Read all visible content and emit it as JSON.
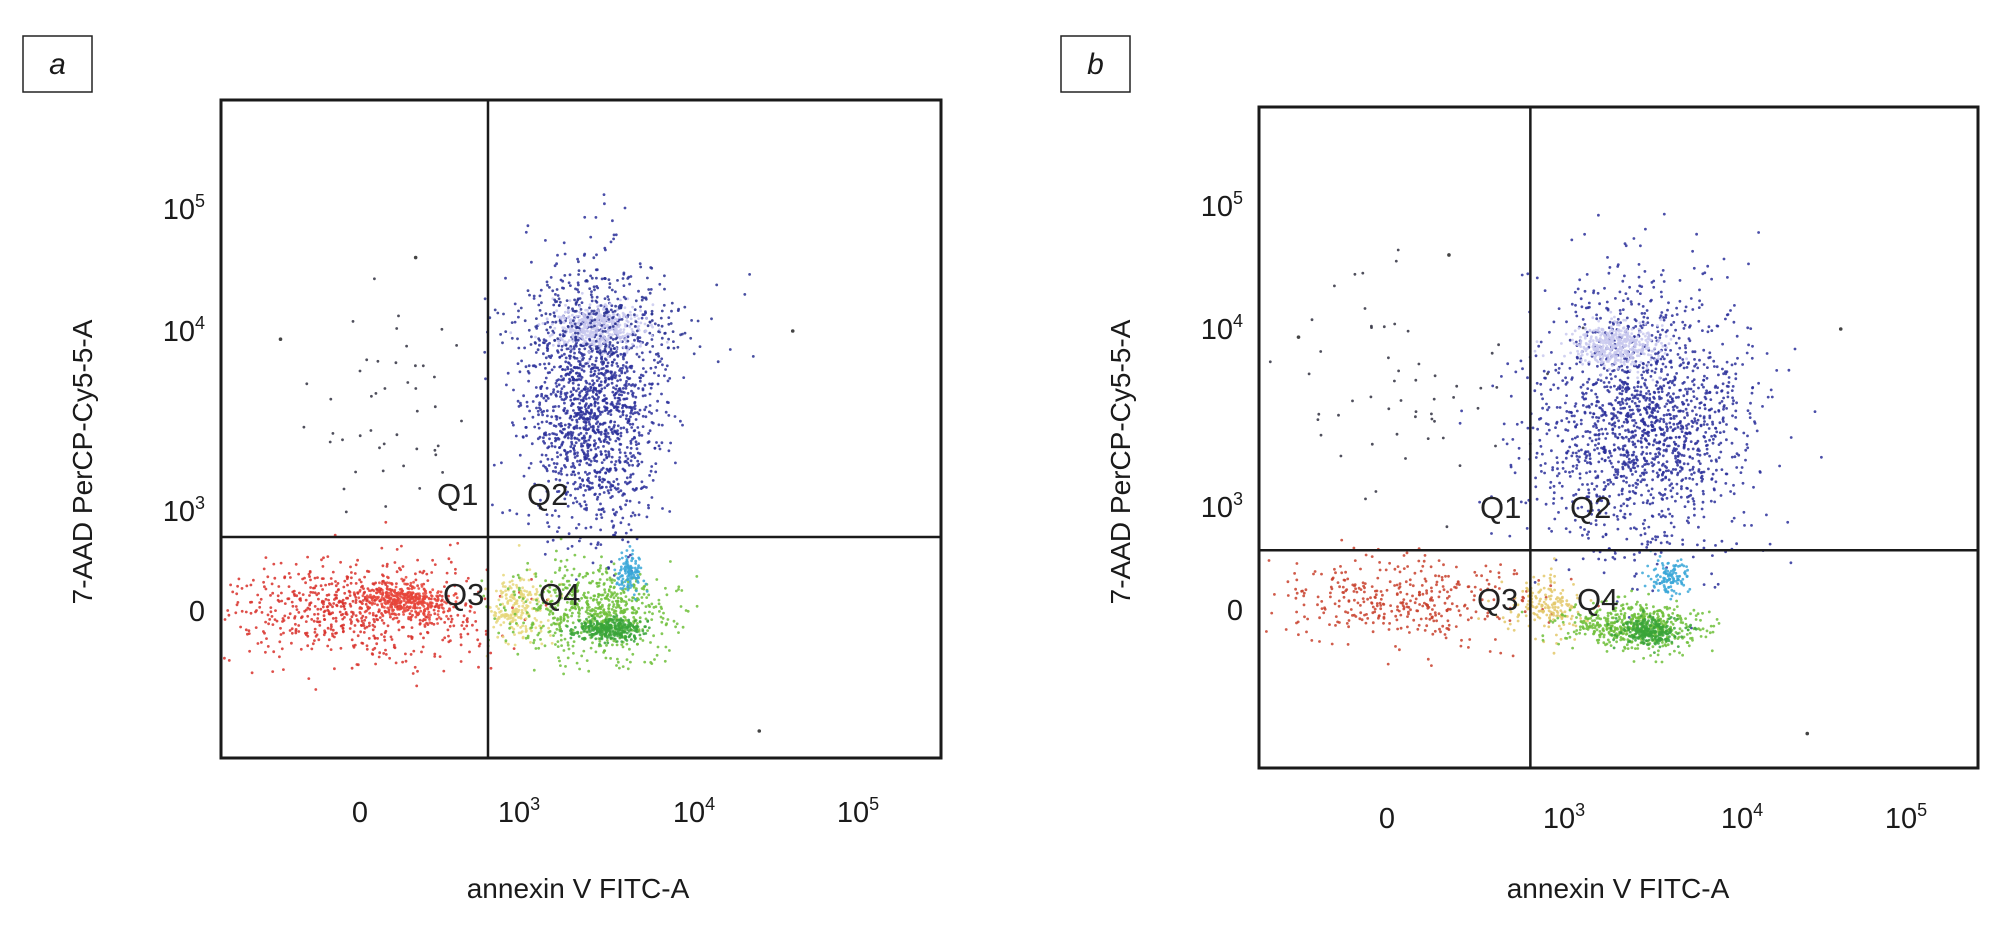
{
  "chart_data": [
    {
      "type": "scatter",
      "panel_label": "a",
      "xlabel": "annexin V FITC-A",
      "ylabel": "7-AAD PerCP-Cy5-5-A",
      "x_ticks": [
        {
          "base": "0",
          "exp": ""
        },
        {
          "base": "10",
          "exp": "3"
        },
        {
          "base": "10",
          "exp": "4"
        },
        {
          "base": "10",
          "exp": "5"
        }
      ],
      "y_ticks": [
        {
          "base": "0",
          "exp": ""
        },
        {
          "base": "10",
          "exp": "3"
        },
        {
          "base": "10",
          "exp": "4"
        },
        {
          "base": "10",
          "exp": "5"
        }
      ],
      "tick_values": [
        0,
        1000,
        10000,
        100000
      ],
      "scale": "biexponential",
      "quadrant_gate": {
        "x": 805,
        "y": 740
      },
      "quadrant_labels": [
        "Q1",
        "Q2",
        "Q3",
        "Q4"
      ],
      "populations": [
        {
          "name": "Q2 late apoptotic column",
          "x": [
            1100,
            6700
          ],
          "y": [
            780,
            26000
          ],
          "n": 1500,
          "color": "#2a2f9a"
        },
        {
          "name": "Q2 dense core",
          "x": [
            1500,
            5000
          ],
          "y": [
            8000,
            16000
          ],
          "n": 450,
          "color": "#c9c9ee"
        },
        {
          "name": "Q2 upper spread",
          "x": [
            900,
            11000
          ],
          "y": [
            6000,
            30000
          ],
          "n": 250,
          "color": "#283090"
        },
        {
          "name": "Q3 live cells",
          "x": [
            -810,
            800
          ],
          "y": [
            -500,
            520
          ],
          "n": 700,
          "color": "#d8302a"
        },
        {
          "name": "Q3 core",
          "x": [
            0,
            570
          ],
          "y": [
            -60,
            270
          ],
          "n": 350,
          "color": "#e8453a"
        },
        {
          "name": "Q3/Q4 transition",
          "x": [
            800,
            1500
          ],
          "y": [
            -300,
            350
          ],
          "n": 220,
          "color": "#e6d77a"
        },
        {
          "name": "Q4 early apoptotic",
          "x": [
            970,
            8000
          ],
          "y": [
            -440,
            460
          ],
          "n": 650,
          "color": "#6fbf3a"
        },
        {
          "name": "Q4 core",
          "x": [
            2200,
            5000
          ],
          "y": [
            -300,
            -60
          ],
          "n": 300,
          "color": "#3aa53a"
        },
        {
          "name": "Q4/Q2 cyan",
          "x": [
            3600,
            5000
          ],
          "y": [
            200,
            590
          ],
          "n": 120,
          "color": "#3aa7d8"
        },
        {
          "name": "Q1 sparse",
          "x": [
            -300,
            780
          ],
          "y": [
            900,
            20000
          ],
          "n": 45,
          "color": "#303040"
        }
      ]
    },
    {
      "type": "scatter",
      "panel_label": "b",
      "xlabel": "annexin V FITC-A",
      "ylabel": "7-AAD PerCP-Cy5-5-A",
      "x_ticks": [
        {
          "base": "0",
          "exp": ""
        },
        {
          "base": "10",
          "exp": "3"
        },
        {
          "base": "10",
          "exp": "4"
        },
        {
          "base": "10",
          "exp": "5"
        }
      ],
      "y_ticks": [
        {
          "base": "0",
          "exp": ""
        },
        {
          "base": "10",
          "exp": "3"
        },
        {
          "base": "10",
          "exp": "4"
        },
        {
          "base": "10",
          "exp": "5"
        }
      ],
      "tick_values": [
        0,
        1000,
        10000,
        100000
      ],
      "scale": "biexponential",
      "quadrant_gate": {
        "x": 810,
        "y": 580
      },
      "quadrant_labels": [
        "Q1",
        "Q2",
        "Q3",
        "Q4"
      ],
      "populations": [
        {
          "name": "Q2 late apoptotic column",
          "x": [
            840,
            11000
          ],
          "y": [
            570,
            22000
          ],
          "n": 1700,
          "color": "#2a2f9a"
        },
        {
          "name": "Q2 dense core",
          "x": [
            1100,
            3300
          ],
          "y": [
            6000,
            11000
          ],
          "n": 450,
          "color": "#c9c9ee"
        },
        {
          "name": "Q3 live cells",
          "x": [
            -580,
            800
          ],
          "y": [
            -310,
            500
          ],
          "n": 380,
          "color": "#c8402c"
        },
        {
          "name": "Q3/Q4 transition",
          "x": [
            700,
            1300
          ],
          "y": [
            -250,
            300
          ],
          "n": 180,
          "color": "#e3c86a"
        },
        {
          "name": "Q4 early apoptotic",
          "x": [
            1050,
            6000
          ],
          "y": [
            -380,
            70
          ],
          "n": 520,
          "color": "#6fbf3a"
        },
        {
          "name": "Q4 core",
          "x": [
            2000,
            4500
          ],
          "y": [
            -350,
            -80
          ],
          "n": 250,
          "color": "#3aa53a"
        },
        {
          "name": "Q4/Q2 cyan",
          "x": [
            3000,
            5000
          ],
          "y": [
            150,
            500
          ],
          "n": 120,
          "color": "#3aa7d8"
        },
        {
          "name": "Q1 sparse",
          "x": [
            -600,
            780
          ],
          "y": [
            900,
            30000
          ],
          "n": 55,
          "color": "#303040"
        }
      ]
    }
  ]
}
